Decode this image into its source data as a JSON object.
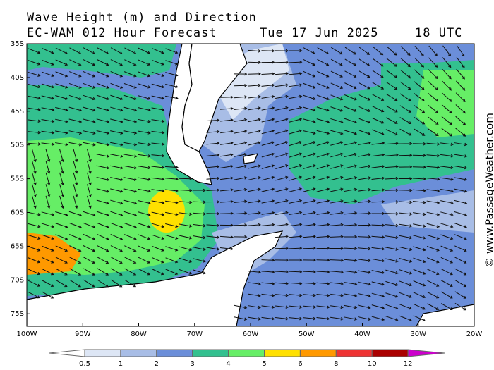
{
  "header": {
    "title": "Wave Height (m) and Direction",
    "subtitle": "EC-WAM 012 Hour Forecast",
    "date": "Tue 17 Jun 2025",
    "time": "18 UTC"
  },
  "map": {
    "lat_labels": [
      "35S",
      "40S",
      "45S",
      "50S",
      "55S",
      "60S",
      "65S",
      "70S",
      "75S"
    ],
    "lon_labels": [
      "100W",
      "90W",
      "80W",
      "70W",
      "60W",
      "50W",
      "40W",
      "30W",
      "20W"
    ]
  },
  "colorbar": {
    "labels": [
      "0.5",
      "1",
      "2",
      "3",
      "4",
      "5",
      "6",
      "8",
      "10",
      "12"
    ],
    "colors": [
      "#ffffff",
      "#dde6f5",
      "#a8bde6",
      "#6b8ed9",
      "#33c08f",
      "#66ee66",
      "#ffe000",
      "#ff9900",
      "#ee3333",
      "#aa0000",
      "#cc00cc"
    ]
  },
  "watermark": "© www.PassageWeather.com"
}
